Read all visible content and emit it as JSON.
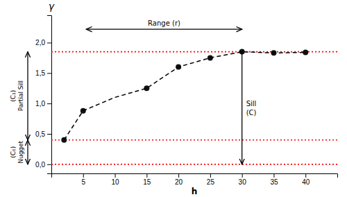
{
  "chart_data": {
    "type": "scatter",
    "x_label": "h",
    "y_label": "γ",
    "xlim": [
      0,
      45
    ],
    "ylim": [
      -0.15,
      2.45
    ],
    "xticks": [
      5,
      10,
      15,
      20,
      25,
      30,
      35,
      40
    ],
    "yticks": [
      {
        "value": 0.0,
        "label": "0,0"
      },
      {
        "value": 0.5,
        "label": "0,5"
      },
      {
        "value": 1.0,
        "label": "1,0"
      },
      {
        "value": 1.5,
        "label": "1,5"
      },
      {
        "value": 2.0,
        "label": "2,0"
      }
    ],
    "series": [
      {
        "type": "scatter",
        "color": "#111111",
        "marker": "circle",
        "x": [
          2,
          5,
          15,
          20,
          25,
          30,
          35,
          40
        ],
        "values": [
          0.4,
          0.88,
          1.25,
          1.6,
          1.75,
          1.85,
          1.83,
          1.84
        ]
      },
      {
        "type": "line",
        "color": "#000000",
        "line_style": "dashed",
        "x": [
          2,
          5,
          10,
          15,
          20,
          25,
          30,
          35,
          40
        ],
        "values": [
          0.4,
          0.88,
          1.1,
          1.25,
          1.6,
          1.75,
          1.85,
          1.83,
          1.84
        ]
      }
    ],
    "reference_lines": {
      "values": [
        1.85,
        0.4,
        0.0
      ],
      "color": "#ff0000",
      "line_style": "dotted"
    },
    "annotations": [
      {
        "text": "Range (r)",
        "x": [
          5.5,
          30
        ],
        "y": 2.22
      },
      {
        "text": "Partial Sill",
        "sub": "(C₁)",
        "y": [
          0.4,
          1.85
        ]
      },
      {
        "text": "Nugget",
        "sub": "(C₀)",
        "y": [
          0.0,
          0.4
        ]
      },
      {
        "text": "Sill",
        "sub": "(C)",
        "x": 30,
        "y": [
          1.85,
          0.0
        ]
      }
    ]
  }
}
